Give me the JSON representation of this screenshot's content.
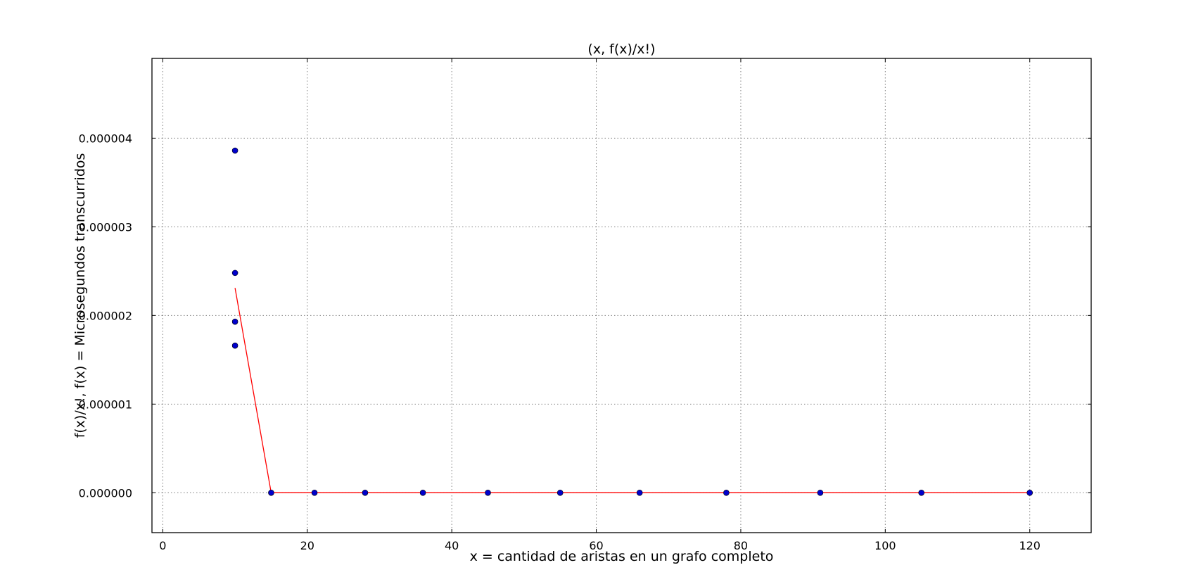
{
  "chart_data": {
    "type": "scatter",
    "title": "(x, f(x)/x!)",
    "xlabel": "x = cantidad de aristas en un grafo completo",
    "ylabel": "f(x)/x!, f(x) = Microsegundos transcurridos",
    "xlim": [
      -1.5,
      128.5
    ],
    "ylim": [
      -4.5e-07,
      4.9e-06
    ],
    "grid": true,
    "x_ticks": [
      0,
      20,
      40,
      60,
      80,
      100,
      120
    ],
    "x_tick_labels": [
      "0",
      "20",
      "40",
      "60",
      "80",
      "100",
      "120"
    ],
    "y_ticks": [
      0,
      1e-06,
      2e-06,
      3e-06,
      4e-06
    ],
    "y_tick_labels": [
      "0.000000",
      "0.000001",
      "0.000002",
      "0.000003",
      "0.000004"
    ],
    "series": [
      {
        "type": "scatter",
        "color": "#0000cc",
        "points": [
          {
            "x": 10,
            "y": 3.86e-06
          },
          {
            "x": 10,
            "y": 2.48e-06
          },
          {
            "x": 10,
            "y": 1.93e-06
          },
          {
            "x": 10,
            "y": 1.66e-06
          },
          {
            "x": 15,
            "y": 0
          },
          {
            "x": 21,
            "y": 0
          },
          {
            "x": 28,
            "y": 0
          },
          {
            "x": 36,
            "y": 0
          },
          {
            "x": 45,
            "y": 0
          },
          {
            "x": 55,
            "y": 0
          },
          {
            "x": 66,
            "y": 0
          },
          {
            "x": 78,
            "y": 0
          },
          {
            "x": 91,
            "y": 0
          },
          {
            "x": 105,
            "y": 0
          },
          {
            "x": 120,
            "y": 0
          }
        ]
      },
      {
        "type": "line",
        "color": "#ff0000",
        "points": [
          {
            "x": 10,
            "y": 2.31e-06
          },
          {
            "x": 15,
            "y": 0
          },
          {
            "x": 21,
            "y": 0
          },
          {
            "x": 28,
            "y": 0
          },
          {
            "x": 36,
            "y": 0
          },
          {
            "x": 45,
            "y": 0
          },
          {
            "x": 55,
            "y": 0
          },
          {
            "x": 66,
            "y": 0
          },
          {
            "x": 78,
            "y": 0
          },
          {
            "x": 91,
            "y": 0
          },
          {
            "x": 105,
            "y": 0
          },
          {
            "x": 120,
            "y": 0
          }
        ]
      }
    ]
  }
}
